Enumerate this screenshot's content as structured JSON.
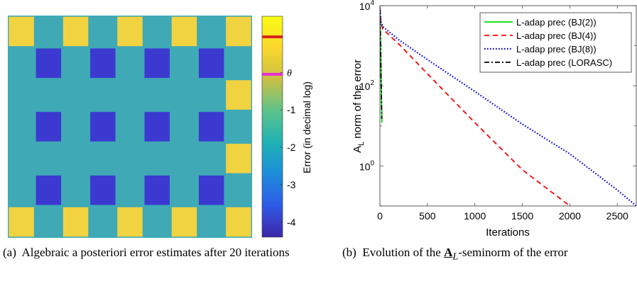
{
  "captions": {
    "a": {
      "label": "(a)",
      "text": "Algebraic a posteriori error estimates after 20 iterations"
    },
    "b": {
      "label": "(b)",
      "text_before": "Evolution of the",
      "symbol": "A",
      "subscript": "L",
      "text_after": "-seminorm of the error"
    }
  },
  "colors": {
    "background_field": "#3fa9b6",
    "block_yellow": "#f1d341",
    "block_blue": "#3b39d0",
    "red_marker": "#d62418",
    "magenta_marker": "#e62fd6"
  },
  "chart_data": [
    {
      "type": "heatmap",
      "title": "",
      "colorbar": {
        "label": "Error (in decimal log)",
        "ticks": [
          "-4",
          "-3",
          "-2",
          "-1",
          "θ"
        ],
        "tick_values": [
          -4,
          -3,
          -2,
          -1,
          0
        ],
        "range": [
          -4.4,
          1.5
        ],
        "markers": [
          {
            "color": "red",
            "value": 0.95
          },
          {
            "color": "magenta",
            "value": -0.05
          }
        ],
        "stops": [
          "#3e26a8",
          "#2e5ae6",
          "#1d8ddb",
          "#20b1b4",
          "#5cc38b",
          "#c9c044",
          "#fbd72c",
          "#f9fb15"
        ]
      },
      "grid": {
        "rows": 7,
        "cols": 9,
        "yellow_blocks_row_top_bottom_cols": [
          0,
          2,
          4,
          6,
          8
        ],
        "yellow_blocks_right_rows": [
          2,
          4,
          6
        ],
        "blue_blocks_rows": [
          1,
          3,
          5
        ],
        "blue_blocks_cols": [
          1,
          3,
          5,
          7
        ]
      }
    },
    {
      "type": "line",
      "title": "",
      "xlabel": "Iterations",
      "ylabel": "A_L norm of the error",
      "yscale": "log",
      "xlim": [
        0,
        2700
      ],
      "ylim": [
        0.1,
        10000
      ],
      "xticks": [
        0,
        500,
        1000,
        1500,
        2000,
        2500
      ],
      "yticks": [
        {
          "label": "10",
          "exp": "0",
          "value": 1
        },
        {
          "label": "10",
          "exp": "2",
          "value": 100
        },
        {
          "label": "10",
          "exp": "4",
          "value": 10000
        }
      ],
      "legend": "top-right",
      "series": [
        {
          "name": "L-adap prec (BJ(2))",
          "color": "#00dd00",
          "style": "solid",
          "x": [
            0,
            5,
            10,
            15,
            20
          ],
          "y": [
            8000,
            2000,
            400,
            60,
            12
          ]
        },
        {
          "name": "L-adap prec (BJ(4))",
          "color": "#ff0000",
          "style": "dashed",
          "x": [
            0,
            10,
            30,
            200,
            500,
            1000,
            1500,
            2000
          ],
          "y": [
            9000,
            4000,
            2600,
            1100,
            200,
            12,
            0.8,
            0.1
          ]
        },
        {
          "name": "L-adap prec (BJ(8))",
          "color": "#0000dd",
          "style": "dotted",
          "x": [
            0,
            10,
            30,
            200,
            500,
            1000,
            1500,
            2000,
            2500,
            2700
          ],
          "y": [
            9000,
            4000,
            3000,
            1400,
            450,
            72,
            11,
            2,
            0.25,
            0.1
          ]
        },
        {
          "name": "L-adap prec (LORASC)",
          "color": "#000000",
          "style": "dashdot",
          "x": [
            0,
            5,
            10,
            15,
            20
          ],
          "y": [
            8000,
            2000,
            400,
            60,
            15
          ]
        }
      ]
    }
  ]
}
